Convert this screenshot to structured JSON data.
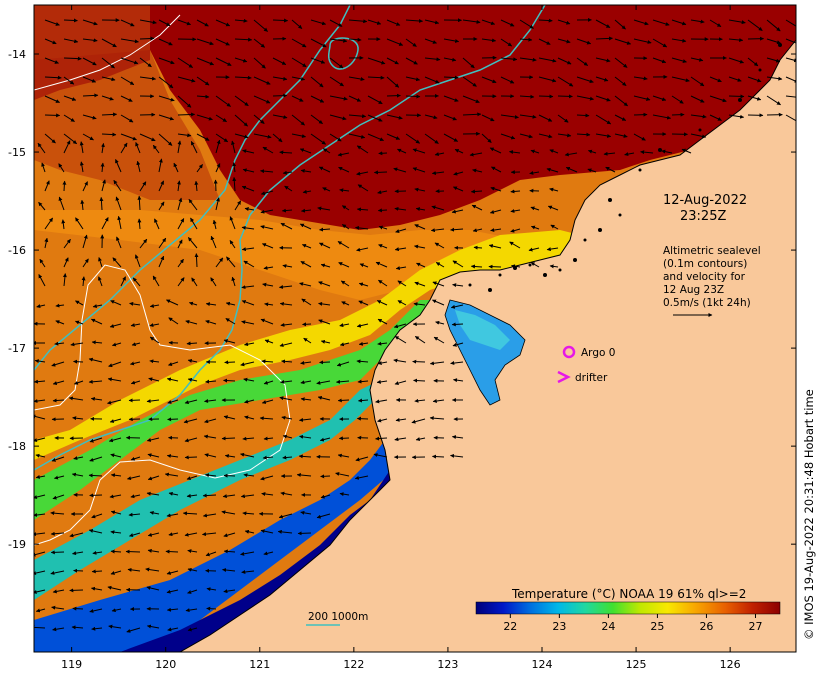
{
  "map": {
    "datetime_line1": "12-Aug-2022",
    "datetime_line2": "23:25Z",
    "sealevel_note": [
      "Altimetric sealevel",
      "(0.1m contours)",
      "and velocity for",
      "12 Aug 23Z",
      "0.5m/s (1kt 24h)"
    ],
    "argo_label": "Argo 0",
    "drifter_label": "drifter",
    "depth_legend": "200  1000m",
    "colorbar_title": "Temperature (°C) NOAA 19 61% ql>=2",
    "colorbar_ticks": [
      "22",
      "23",
      "24",
      "25",
      "26",
      "27"
    ],
    "credit": "© IMOS 19-Aug-2022 20:31:48 Hobart time",
    "lat_ticks": [
      "-14",
      "-15",
      "-16",
      "-17",
      "-18",
      "-19"
    ],
    "lon_ticks": [
      "119",
      "120",
      "121",
      "122",
      "123",
      "124",
      "125",
      "126"
    ],
    "lat_range": [
      -20.1,
      -13.5
    ],
    "lon_range": [
      118.6,
      126.7
    ],
    "colors": {
      "land": "#f9c89a",
      "argo": "#e619e6",
      "bathymetry": "#3fbfc0",
      "sealevel_contour": "#ffffff",
      "colormap": [
        "#00007a",
        "#0018c8",
        "#0070e0",
        "#00b8e8",
        "#20d8a0",
        "#40e030",
        "#c0e800",
        "#f8e800",
        "#f8a800",
        "#e86000",
        "#c02000",
        "#8c0000"
      ]
    }
  }
}
